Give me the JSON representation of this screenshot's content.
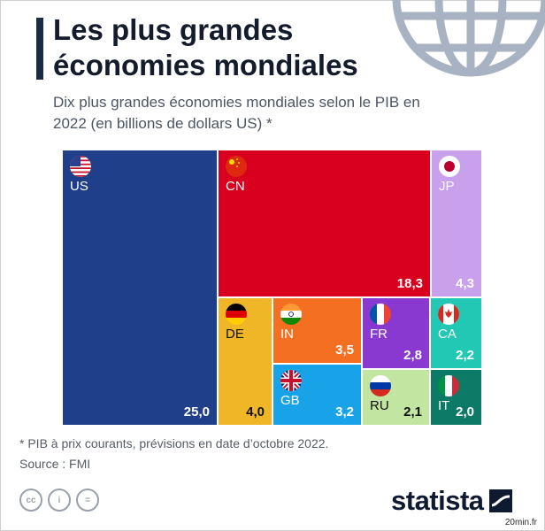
{
  "header": {
    "title": "Les plus grandes économies mondiales",
    "subtitle": "Dix plus grandes économies mondiales selon le PIB en 2022 (en billions de dollars US) *"
  },
  "chart_data": {
    "type": "treemap",
    "title": "Les plus grandes économies mondiales",
    "subtitle": "Dix plus grandes économies mondiales selon le PIB en 2022 (en billions de dollars US) *",
    "categories": [
      "US",
      "CN",
      "JP",
      "DE",
      "IN",
      "GB",
      "FR",
      "RU",
      "CA",
      "IT"
    ],
    "values": [
      25.0,
      18.3,
      4.3,
      4.0,
      3.5,
      3.2,
      2.8,
      2.1,
      2.2,
      2.0
    ],
    "value_labels": [
      "25,0",
      "18,3",
      "4,3",
      "4,0",
      "3,5",
      "3,2",
      "2,8",
      "2,1",
      "2,2",
      "2,0"
    ],
    "colors": {
      "US": "#1f3f8a",
      "CN": "#d8001e",
      "JP": "#c9a0ec",
      "DE": "#efb727",
      "IN": "#f46f22",
      "GB": "#18a3e8",
      "FR": "#8a39d0",
      "RU": "#c3e5a2",
      "CA": "#22c8b4",
      "IT": "#0c7a66"
    },
    "flags": {
      "US": "us-flag-icon",
      "CN": "china-flag-icon",
      "JP": "japan-flag-icon",
      "DE": "germany-flag-icon",
      "IN": "india-flag-icon",
      "GB": "uk-flag-icon",
      "FR": "france-flag-icon",
      "RU": "russia-flag-icon",
      "CA": "canada-flag-icon",
      "IT": "italy-flag-icon"
    }
  },
  "footer": {
    "footnote": "* PIB à prix courants, prévisions en date d’octobre 2022.",
    "source": "Source : FMI",
    "license_icons": [
      "creative-commons-icon",
      "attribution-icon",
      "no-derivatives-icon"
    ],
    "license_labels": [
      "cc",
      "i",
      "="
    ],
    "brand": "statista",
    "watermark": "20min.fr"
  }
}
